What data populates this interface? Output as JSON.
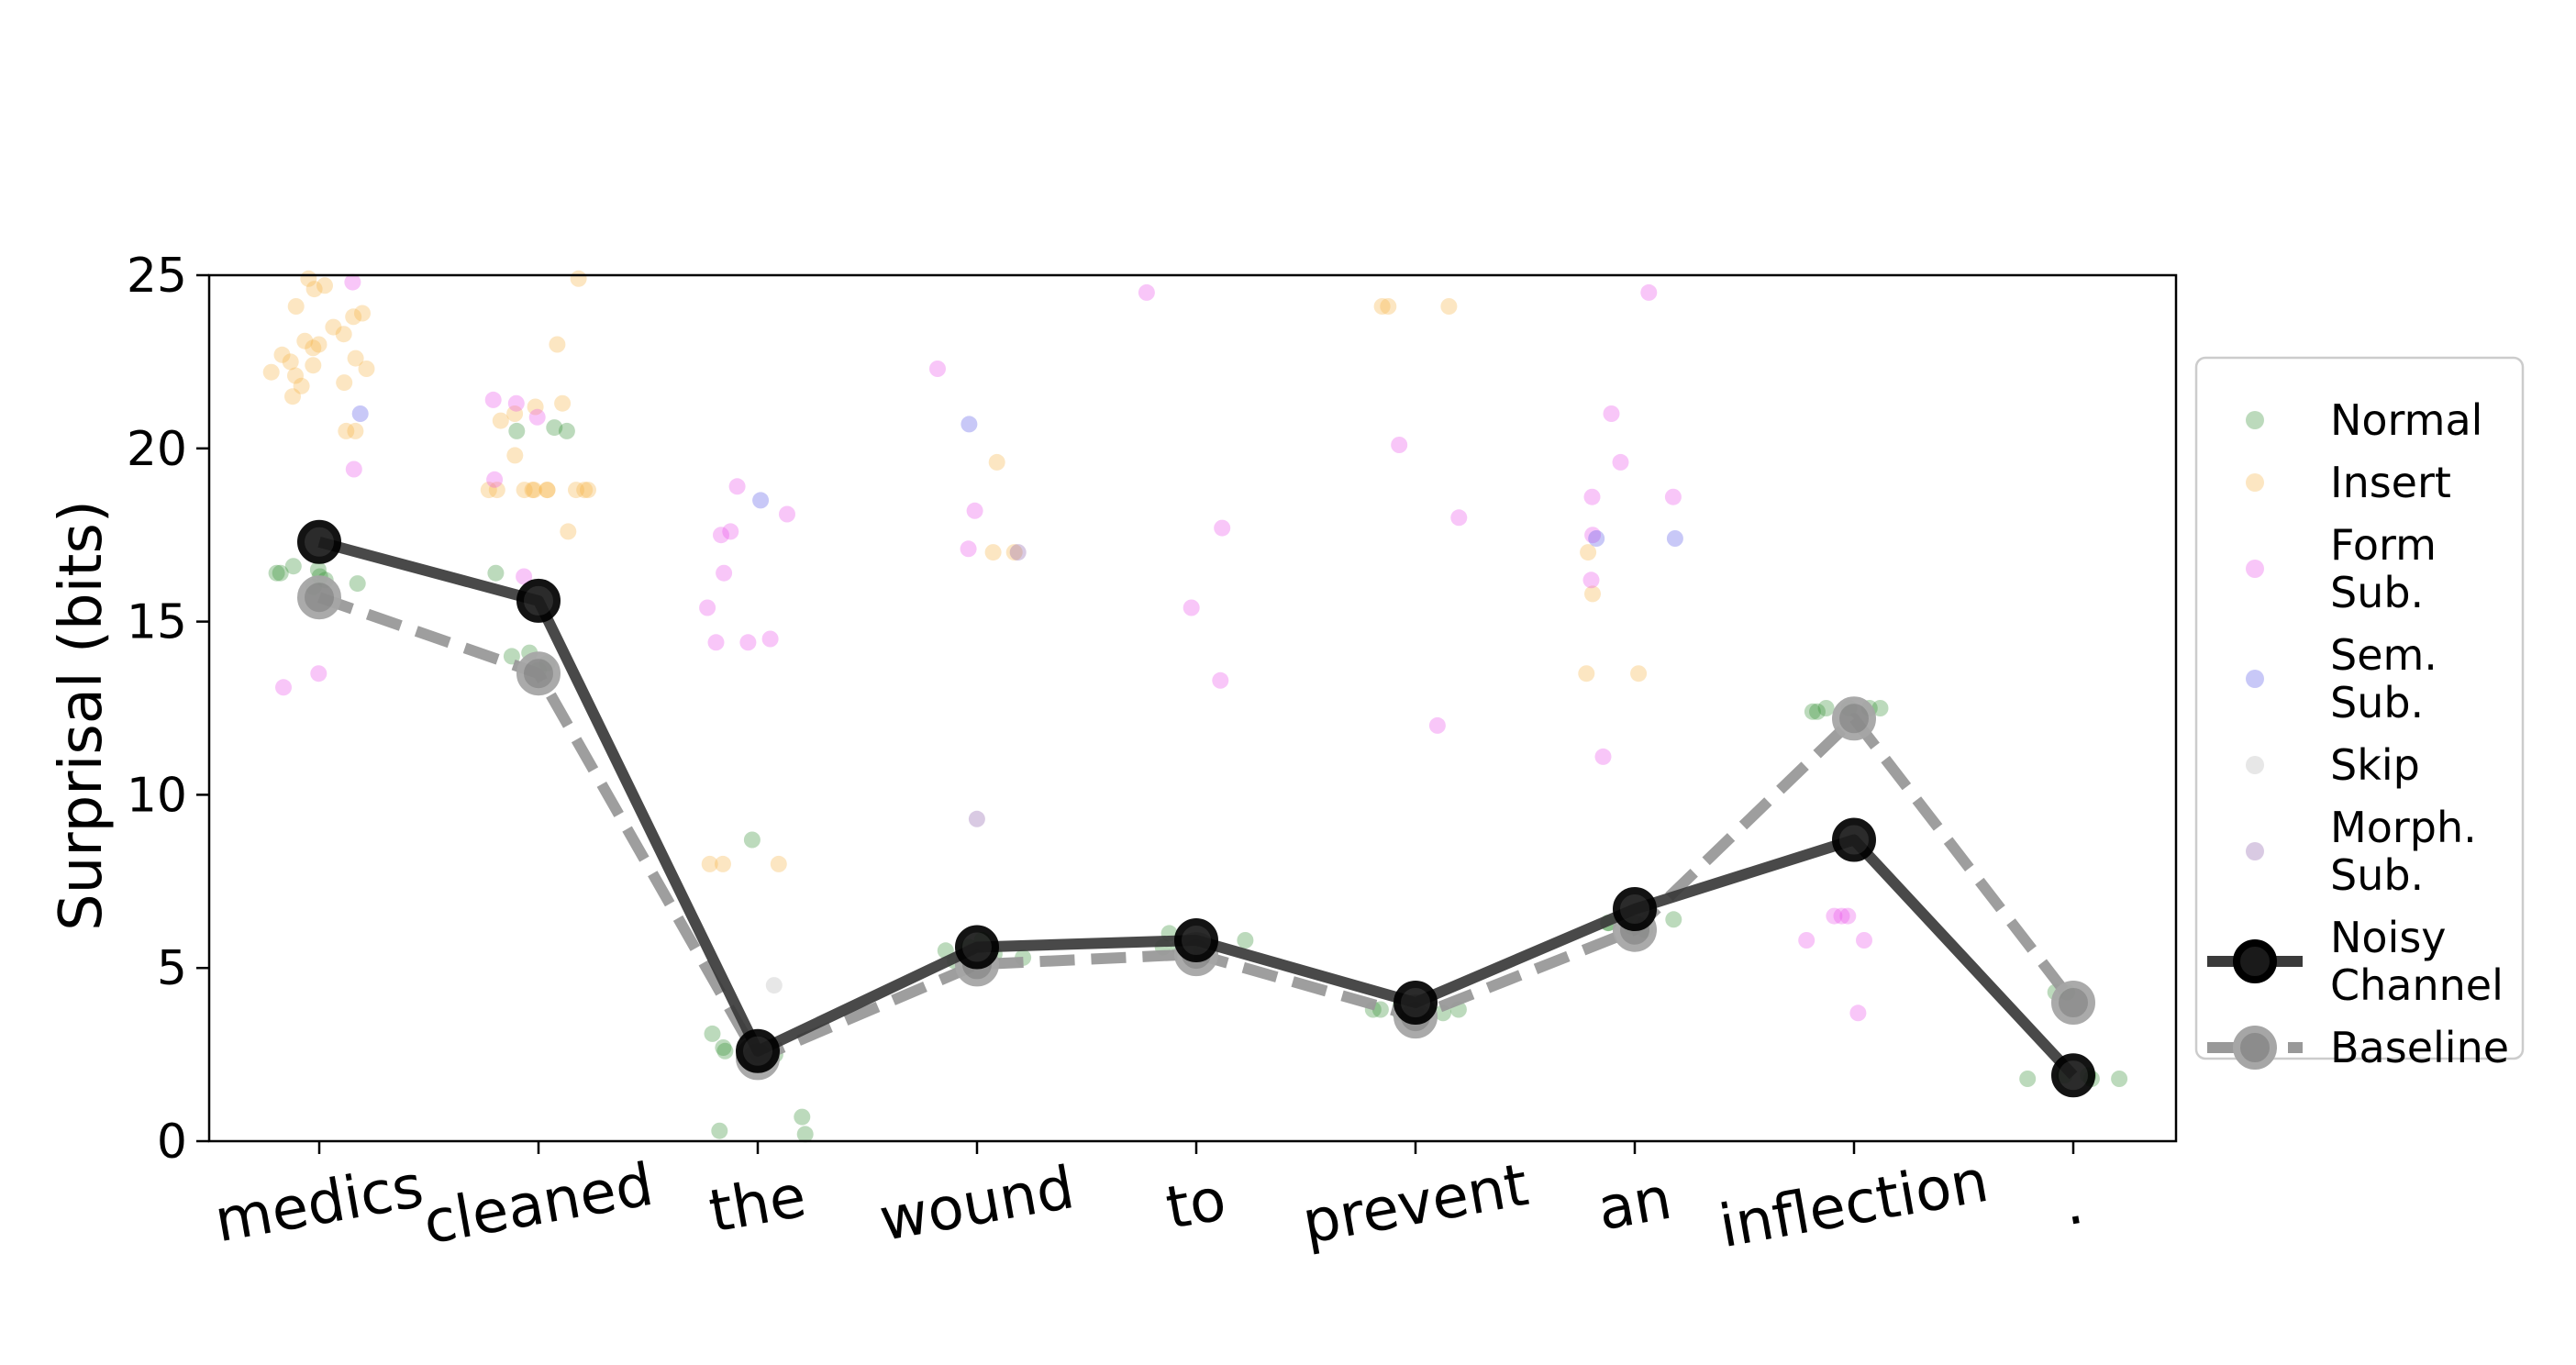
{
  "chart_data": {
    "type": "scatter",
    "title": "",
    "xlabel": "",
    "ylabel": "Surprisal (bits)",
    "ylim": [
      0,
      25
    ],
    "yticks": [
      "0",
      "5",
      "10",
      "15",
      "20",
      "25"
    ],
    "categories": [
      "medics",
      "cleaned",
      "the",
      "wound",
      "to",
      "prevent",
      "an",
      "inflection",
      "."
    ],
    "legend_position": "right",
    "colors": {
      "Normal": "#2e8b2e",
      "Insert": "#f5b041",
      "Form Sub.": "#e84de8",
      "Sem. Sub.": "#5555e6",
      "Skip": "#b3b3b3",
      "Morph. Sub.": "#8a5aa8",
      "Noisy Channel": "#404040",
      "Baseline": "#999999"
    },
    "legend": [
      {
        "key": "Normal",
        "lines": [
          "Normal"
        ],
        "kind": "dot"
      },
      {
        "key": "Insert",
        "lines": [
          "Insert"
        ],
        "kind": "dot"
      },
      {
        "key": "Form Sub.",
        "lines": [
          "Form",
          "Sub."
        ],
        "kind": "dot"
      },
      {
        "key": "Sem. Sub.",
        "lines": [
          "Sem.",
          "Sub."
        ],
        "kind": "dot"
      },
      {
        "key": "Skip",
        "lines": [
          "Skip"
        ],
        "kind": "dot"
      },
      {
        "key": "Morph. Sub.",
        "lines": [
          "Morph.",
          "Sub."
        ],
        "kind": "dot"
      },
      {
        "key": "Noisy Channel",
        "lines": [
          "Noisy",
          "Channel"
        ],
        "kind": "solid"
      },
      {
        "key": "Baseline",
        "lines": [
          "Baseline"
        ],
        "kind": "dashed"
      }
    ],
    "lines": [
      {
        "name": "Noisy Channel",
        "values": [
          17.3,
          15.6,
          2.6,
          5.6,
          5.8,
          4.0,
          6.7,
          8.7,
          1.9
        ]
      },
      {
        "name": "Baseline",
        "values": [
          15.7,
          13.5,
          2.4,
          5.1,
          5.4,
          3.6,
          6.1,
          12.2,
          4.0
        ]
      }
    ],
    "scatter": [
      {
        "name": "Normal",
        "points": [
          [
            0,
            16.5
          ],
          [
            0,
            16.2
          ],
          [
            0,
            16.4
          ],
          [
            0,
            16.6
          ],
          [
            0,
            16.0
          ],
          [
            0,
            16.3
          ],
          [
            0,
            16.4
          ],
          [
            0,
            16.1
          ],
          [
            1,
            13.8
          ],
          [
            1,
            14.1
          ],
          [
            1,
            20.5
          ],
          [
            1,
            20.5
          ],
          [
            1,
            20.6
          ],
          [
            1,
            16.4
          ],
          [
            1,
            13.6
          ],
          [
            1,
            14.0
          ],
          [
            2,
            2.5
          ],
          [
            2,
            2.7
          ],
          [
            2,
            2.6
          ],
          [
            2,
            2.5
          ],
          [
            2,
            2.6
          ],
          [
            2,
            3.1
          ],
          [
            2,
            0.7
          ],
          [
            2,
            0.2
          ],
          [
            2,
            0.3
          ],
          [
            2,
            8.7
          ],
          [
            3,
            5.3
          ],
          [
            3,
            5.5
          ],
          [
            3,
            5.6
          ],
          [
            3,
            5.8
          ],
          [
            3,
            5.4
          ],
          [
            3,
            5.2
          ],
          [
            4,
            5.6
          ],
          [
            4,
            5.8
          ],
          [
            4,
            5.7
          ],
          [
            4,
            6.0
          ],
          [
            4,
            5.5
          ],
          [
            4,
            5.6
          ],
          [
            5,
            3.8
          ],
          [
            5,
            3.7
          ],
          [
            5,
            3.9
          ],
          [
            5,
            3.7
          ],
          [
            5,
            3.8
          ],
          [
            5,
            3.8
          ],
          [
            6,
            6.3
          ],
          [
            6,
            6.4
          ],
          [
            6,
            6.2
          ],
          [
            6,
            6.3
          ],
          [
            6,
            6.1
          ],
          [
            6,
            6.4
          ],
          [
            7,
            12.5
          ],
          [
            7,
            12.5
          ],
          [
            7,
            12.4
          ],
          [
            7,
            12.5
          ],
          [
            7,
            12.5
          ],
          [
            7,
            12.4
          ],
          [
            8,
            1.8
          ],
          [
            8,
            1.9
          ],
          [
            8,
            1.8
          ],
          [
            8,
            1.9
          ],
          [
            8,
            1.8
          ],
          [
            8,
            4.3
          ],
          [
            8,
            4.3
          ]
        ]
      },
      {
        "name": "Insert",
        "points": [
          [
            0,
            23.0
          ],
          [
            0,
            22.4
          ],
          [
            0,
            23.8
          ],
          [
            0,
            24.6
          ],
          [
            0,
            22.9
          ],
          [
            0,
            22.1
          ],
          [
            0,
            21.5
          ],
          [
            0,
            23.3
          ],
          [
            0,
            22.7
          ],
          [
            0,
            24.1
          ],
          [
            0,
            20.5
          ],
          [
            0,
            20.5
          ],
          [
            0,
            22.3
          ],
          [
            0,
            23.9
          ],
          [
            0,
            22.6
          ],
          [
            0,
            21.9
          ],
          [
            0,
            23.5
          ],
          [
            0,
            24.7
          ],
          [
            0,
            22.2
          ],
          [
            0,
            21.8
          ],
          [
            0,
            23.1
          ],
          [
            0,
            22.5
          ],
          [
            0,
            24.9
          ],
          [
            1,
            23.0
          ],
          [
            1,
            21.3
          ],
          [
            1,
            19.8
          ],
          [
            1,
            18.8
          ],
          [
            1,
            18.8
          ],
          [
            1,
            18.8
          ],
          [
            1,
            18.8
          ],
          [
            1,
            18.8
          ],
          [
            1,
            18.8
          ],
          [
            1,
            18.8
          ],
          [
            1,
            18.8
          ],
          [
            1,
            18.8
          ],
          [
            1,
            18.8
          ],
          [
            1,
            21.2
          ],
          [
            1,
            20.8
          ],
          [
            1,
            17.6
          ],
          [
            1,
            24.9
          ],
          [
            1,
            21.0
          ],
          [
            2,
            8.0
          ],
          [
            2,
            8.0
          ],
          [
            2,
            8.0
          ],
          [
            3,
            19.6
          ],
          [
            3,
            17.0
          ],
          [
            3,
            17.0
          ],
          [
            5,
            24.1
          ],
          [
            5,
            24.1
          ],
          [
            5,
            24.1
          ],
          [
            6,
            17.0
          ],
          [
            6,
            15.8
          ],
          [
            6,
            13.5
          ],
          [
            6,
            13.5
          ]
        ]
      },
      {
        "name": "Form Sub.",
        "points": [
          [
            0,
            24.8
          ],
          [
            0,
            19.4
          ],
          [
            0,
            13.1
          ],
          [
            0,
            13.5
          ],
          [
            1,
            21.4
          ],
          [
            1,
            21.3
          ],
          [
            1,
            20.9
          ],
          [
            1,
            19.1
          ],
          [
            1,
            16.3
          ],
          [
            2,
            17.6
          ],
          [
            2,
            18.9
          ],
          [
            2,
            18.1
          ],
          [
            2,
            17.5
          ],
          [
            2,
            16.4
          ],
          [
            2,
            15.4
          ],
          [
            2,
            14.5
          ],
          [
            2,
            14.4
          ],
          [
            2,
            14.4
          ],
          [
            3,
            22.3
          ],
          [
            3,
            18.2
          ],
          [
            3,
            17.1
          ],
          [
            4,
            24.5
          ],
          [
            4,
            17.7
          ],
          [
            4,
            15.4
          ],
          [
            4,
            13.3
          ],
          [
            5,
            20.1
          ],
          [
            5,
            18.0
          ],
          [
            5,
            12.0
          ],
          [
            6,
            24.5
          ],
          [
            6,
            21.0
          ],
          [
            6,
            19.6
          ],
          [
            6,
            18.6
          ],
          [
            6,
            18.6
          ],
          [
            6,
            17.5
          ],
          [
            6,
            16.2
          ],
          [
            6,
            11.1
          ],
          [
            7,
            6.5
          ],
          [
            7,
            5.8
          ],
          [
            7,
            5.8
          ],
          [
            7,
            6.5
          ],
          [
            7,
            6.5
          ],
          [
            7,
            3.7
          ]
        ]
      },
      {
        "name": "Sem. Sub.",
        "points": [
          [
            0,
            21.0
          ],
          [
            2,
            18.5
          ],
          [
            3,
            20.7
          ],
          [
            6,
            17.4
          ],
          [
            6,
            17.4
          ]
        ]
      },
      {
        "name": "Skip",
        "points": [
          [
            2,
            4.5
          ]
        ]
      },
      {
        "name": "Morph. Sub.",
        "points": [
          [
            3,
            9.3
          ],
          [
            3,
            17.0
          ]
        ]
      }
    ]
  }
}
